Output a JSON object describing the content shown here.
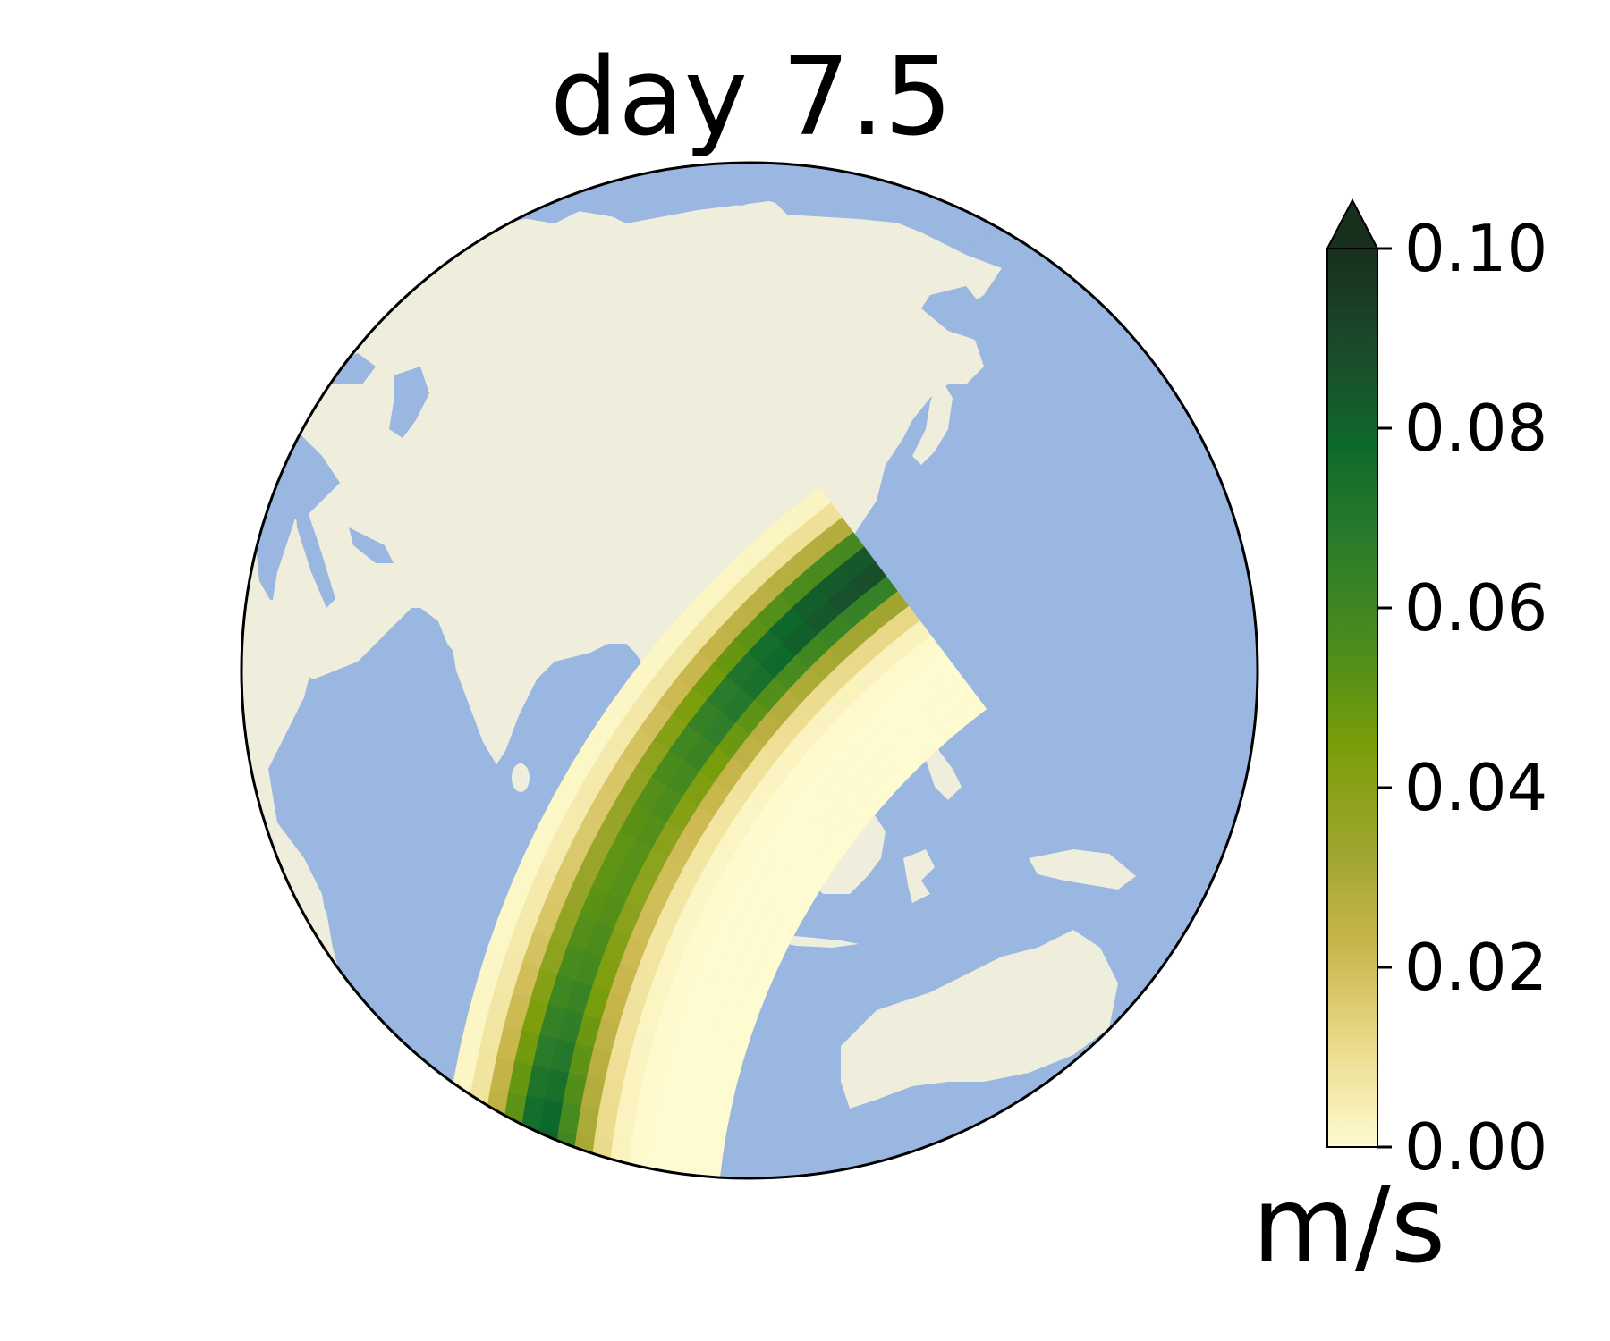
{
  "figure": {
    "title": "day 7.5",
    "colorbar": {
      "unit": "m/s",
      "min": 0.0,
      "max": 0.1,
      "extend": "max",
      "ticks": [
        "0.10",
        "0.08",
        "0.06",
        "0.04",
        "0.02",
        "0.00"
      ],
      "colormap_stops": [
        "#fffbd0",
        "#ebdb8c",
        "#c9b64c",
        "#9ea52e",
        "#7a9e0a",
        "#4c8c1c",
        "#2d7d2a",
        "#0e6a2c",
        "#1b4a2b",
        "#182f1c"
      ]
    },
    "map": {
      "projection": "orthographic",
      "central_region": "Asia / Indo-Pacific",
      "ocean_color": "#99b7e1",
      "land_color": "#efeedd",
      "outline_color": "#000000"
    },
    "field": {
      "description_quantity": "wind speed anomaly band",
      "peak_value": 0.09
    }
  }
}
